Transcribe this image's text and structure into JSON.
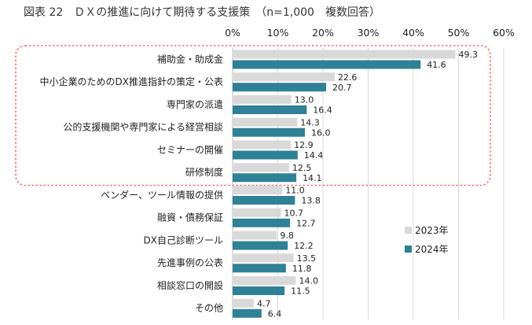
{
  "title": "図表 22　ＤＸの推進に向けて期待する支援策　（n=1,000　複数回答）",
  "chart_data": {
    "type": "bar",
    "orientation": "horizontal",
    "xlim": [
      0,
      60
    ],
    "xticks": [
      "0%",
      "10%",
      "20%",
      "30%",
      "40%",
      "50%",
      "60%"
    ],
    "grid": true,
    "legend_position": "bottom-right",
    "categories": [
      "補助金・助成金",
      "中小企業のためのDX推進指針の策定・公表",
      "専門家の派遣",
      "公的支援機関や専門家による経営相談",
      "セミナーの開催",
      "研修制度",
      "ベンダー、ツール情報の提供",
      "融資・債務保証",
      "DX自己診断ツール",
      "先進事例の公表",
      "相談窓口の開設",
      "その他"
    ],
    "series": [
      {
        "name": "2023年",
        "color": "#d9d9d9",
        "values": [
          49.3,
          22.6,
          13.0,
          14.3,
          12.9,
          12.5,
          11.0,
          10.7,
          9.8,
          13.5,
          14.0,
          4.7
        ]
      },
      {
        "name": "2024年",
        "color": "#2e8196",
        "values": [
          41.6,
          20.7,
          16.4,
          16.0,
          14.4,
          14.1,
          13.8,
          12.7,
          12.2,
          11.8,
          11.5,
          6.4
        ]
      }
    ],
    "highlight": {
      "style": "dashed red rounded box",
      "color": "#ff6b6b",
      "from_category": 0,
      "to_category": 5
    }
  }
}
